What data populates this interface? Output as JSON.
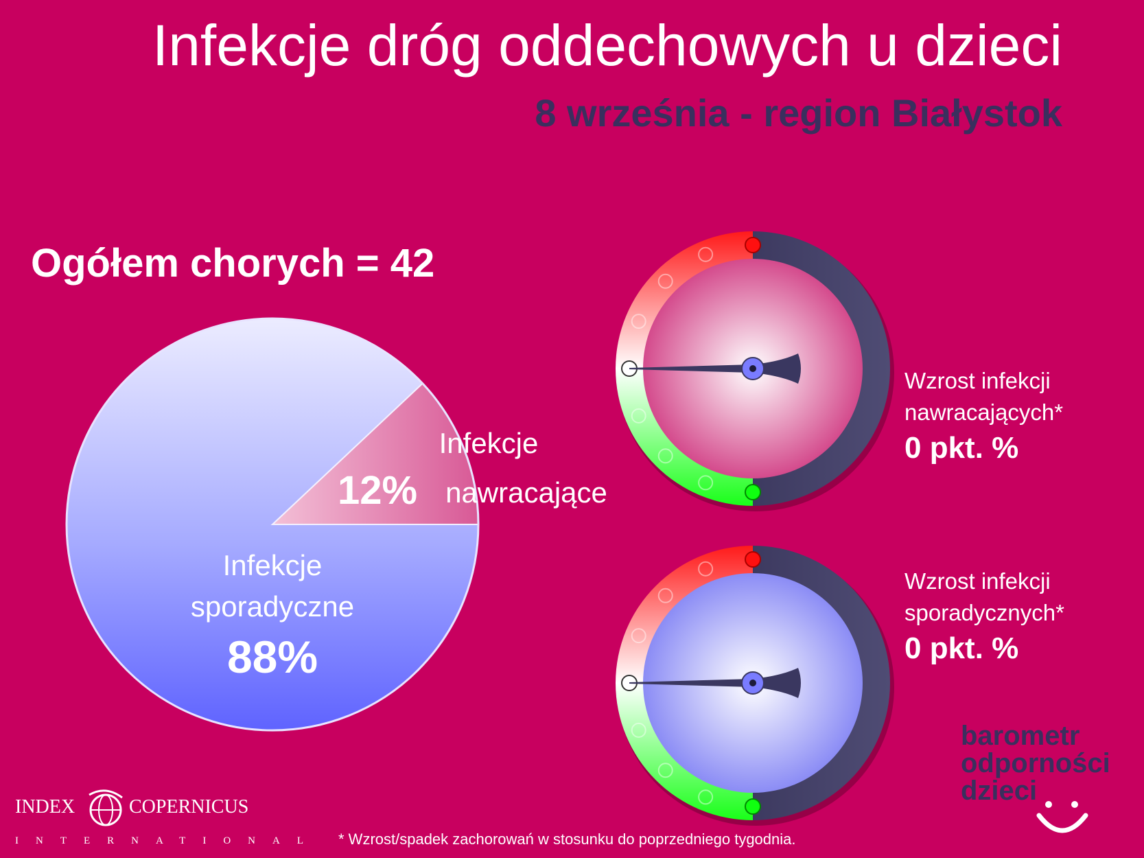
{
  "header": {
    "title": "Infekcje dróg oddechowych u dzieci",
    "subtitle": "8 września - region Białystok"
  },
  "total_label": "Ogółem chorych = 42",
  "chart_data": {
    "type": "pie",
    "slices": [
      {
        "label_line1": "Infekcje",
        "label_line2": "nawracające",
        "value": 12,
        "value_label": "12%",
        "color": "#e58fb5"
      },
      {
        "label_line1": "Infekcje",
        "label_line2": "sporadyczne",
        "value": 88,
        "value_label": "88%",
        "color": "#9ba4ff"
      }
    ]
  },
  "gauges": [
    {
      "label_line1": "Wzrost infekcji",
      "label_line2": "nawracających*",
      "value_label": "0 pkt. %",
      "value": 0,
      "face_color": "#d44a8c"
    },
    {
      "label_line1": "Wzrost infekcji",
      "label_line2": "sporadycznych*",
      "value_label": "0 pkt. %",
      "value": 0,
      "face_color": "#8b8cf5"
    }
  ],
  "brand": {
    "line1": "barometr",
    "line2": "odporności",
    "line3": "dzieci"
  },
  "footnote": "* Wzrost/spadek zachorowań w stosunku do poprzedniego tygodnia.",
  "logo": {
    "left": "INDEX",
    "right": "COPERNICUS",
    "sub": "INTERNATIONAL"
  }
}
